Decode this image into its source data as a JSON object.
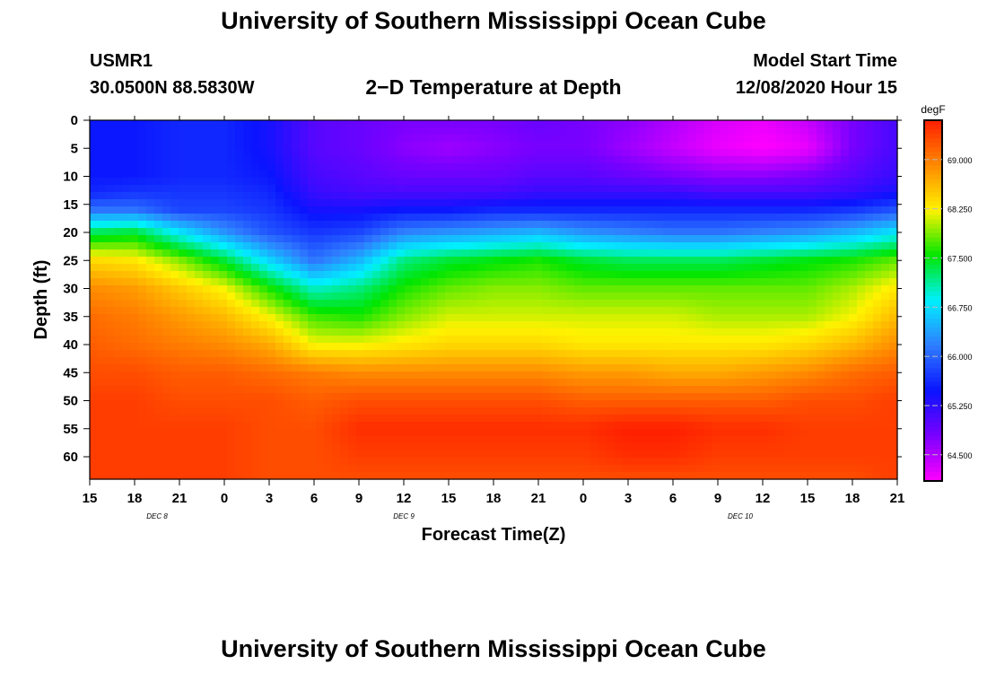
{
  "page": {
    "title_top": "University of Southern Mississippi Ocean Cube",
    "title_bottom": "University of Southern Mississippi Ocean Cube",
    "station_id": "USMR1",
    "station_coords": "30.0500N 88.5830W",
    "plot_title": "2−D Temperature at Depth",
    "model_label": "Model Start Time",
    "model_time": "12/08/2020 Hour 15"
  },
  "colors": {
    "magenta": "#ff00ff",
    "purple": "#7a00ff",
    "blue": "#0a14ff",
    "sky": "#2f7dff",
    "cyan": "#00f0ff",
    "green": "#00e600",
    "yellow": "#fff300",
    "orange": "#ff8a00",
    "red": "#ff1e00"
  },
  "chart_data": {
    "type": "heatmap",
    "title": "2−D Temperature at Depth",
    "xlabel": "Forecast Time(Z)",
    "ylabel": "Depth (ft)",
    "x_tick_labels": [
      "15",
      "18",
      "21",
      "0",
      "3",
      "6",
      "9",
      "12",
      "15",
      "18",
      "21",
      "0",
      "3",
      "6",
      "9",
      "12",
      "15",
      "18",
      "21"
    ],
    "date_labels": [
      {
        "text": "DEC 8",
        "tick_index": 1.5
      },
      {
        "text": "DEC 9",
        "tick_index": 7
      },
      {
        "text": "DEC 10",
        "tick_index": 14.5
      }
    ],
    "y_ticks": [
      0,
      5,
      10,
      15,
      20,
      25,
      30,
      35,
      40,
      45,
      50,
      55,
      60
    ],
    "ylim": [
      0,
      64
    ],
    "xlim_ticks": [
      0,
      18
    ],
    "colorbar": {
      "unit": "degF",
      "min": 64.1,
      "max": 69.6,
      "labels": [
        "69.000",
        "68.250",
        "67.500",
        "66.750",
        "66.000",
        "65.250",
        "64.500"
      ],
      "label_values": [
        69.0,
        68.25,
        67.5,
        66.75,
        66.0,
        65.25,
        64.5
      ]
    },
    "temperature_field": {
      "note": "approximate degF read off the color scale; columns at forecast ticks 0..18, rows at depths listed",
      "depths": [
        0,
        5,
        10,
        13,
        16,
        20,
        25,
        30,
        35,
        40,
        45,
        50,
        55,
        60,
        64
      ],
      "tick_columns": [
        0,
        1,
        2,
        3,
        4,
        5,
        6,
        7,
        8,
        9,
        10,
        11,
        12,
        13,
        14,
        15,
        16,
        17,
        18
      ],
      "values": [
        [
          65.5,
          65.5,
          65.6,
          65.6,
          65.4,
          65.0,
          64.9,
          64.8,
          64.8,
          64.8,
          64.9,
          64.8,
          64.7,
          64.5,
          64.3,
          64.2,
          64.4,
          64.8,
          65.1
        ],
        [
          65.5,
          65.5,
          65.6,
          65.6,
          65.4,
          65.0,
          64.9,
          64.7,
          64.6,
          64.7,
          64.8,
          64.8,
          64.6,
          64.4,
          64.2,
          64.1,
          64.2,
          64.8,
          65.1
        ],
        [
          65.5,
          65.5,
          65.6,
          65.6,
          65.5,
          65.1,
          65.0,
          64.9,
          64.9,
          64.9,
          65.0,
          65.0,
          64.9,
          64.8,
          64.7,
          64.7,
          64.8,
          65.0,
          65.2
        ],
        [
          65.6,
          65.7,
          65.7,
          65.7,
          65.6,
          65.2,
          65.1,
          65.1,
          65.1,
          65.1,
          65.2,
          65.2,
          65.2,
          65.2,
          65.1,
          65.1,
          65.1,
          65.2,
          65.4
        ],
        [
          66.1,
          66.1,
          65.8,
          65.8,
          65.7,
          65.4,
          65.4,
          65.5,
          65.5,
          65.6,
          65.6,
          65.6,
          65.6,
          65.6,
          65.6,
          65.6,
          65.6,
          65.7,
          65.9
        ],
        [
          67.3,
          67.4,
          66.8,
          66.3,
          65.9,
          65.7,
          65.8,
          66.2,
          66.3,
          66.4,
          66.5,
          66.3,
          66.2,
          66.1,
          66.1,
          66.2,
          66.3,
          66.5,
          66.8
        ],
        [
          68.4,
          68.3,
          67.9,
          67.4,
          66.7,
          66.1,
          66.5,
          67.2,
          67.4,
          67.5,
          67.6,
          67.4,
          67.3,
          67.3,
          67.3,
          67.4,
          67.5,
          67.6,
          67.8
        ],
        [
          68.9,
          68.8,
          68.5,
          68.2,
          67.6,
          67.0,
          67.2,
          67.6,
          67.8,
          67.9,
          67.9,
          67.8,
          67.8,
          67.8,
          67.8,
          67.8,
          67.8,
          68.0,
          68.3
        ],
        [
          69.1,
          69.0,
          68.8,
          68.6,
          68.2,
          67.7,
          67.6,
          67.9,
          68.1,
          68.1,
          68.1,
          68.1,
          68.1,
          68.1,
          68.0,
          68.0,
          68.0,
          68.2,
          68.6
        ],
        [
          69.2,
          69.1,
          69.0,
          68.9,
          68.7,
          68.2,
          68.2,
          68.3,
          68.4,
          68.4,
          68.4,
          68.3,
          68.3,
          68.3,
          68.3,
          68.3,
          68.4,
          68.6,
          68.9
        ],
        [
          69.3,
          69.3,
          69.2,
          69.2,
          69.1,
          69.0,
          68.9,
          68.9,
          68.9,
          68.9,
          68.9,
          68.8,
          68.8,
          68.7,
          68.7,
          68.8,
          68.9,
          69.1,
          69.2
        ],
        [
          69.4,
          69.4,
          69.3,
          69.3,
          69.3,
          69.2,
          69.3,
          69.3,
          69.3,
          69.3,
          69.3,
          69.2,
          69.2,
          69.2,
          69.2,
          69.2,
          69.3,
          69.3,
          69.4
        ],
        [
          69.4,
          69.4,
          69.4,
          69.4,
          69.3,
          69.3,
          69.5,
          69.5,
          69.5,
          69.5,
          69.5,
          69.5,
          69.6,
          69.6,
          69.5,
          69.5,
          69.4,
          69.4,
          69.4
        ],
        [
          69.4,
          69.4,
          69.4,
          69.4,
          69.3,
          69.3,
          69.4,
          69.4,
          69.4,
          69.4,
          69.4,
          69.4,
          69.5,
          69.5,
          69.4,
          69.4,
          69.4,
          69.4,
          69.4
        ],
        [
          69.4,
          69.4,
          69.4,
          69.4,
          69.3,
          69.3,
          69.3,
          69.3,
          69.3,
          69.3,
          69.3,
          69.3,
          69.3,
          69.3,
          69.3,
          69.3,
          69.3,
          69.3,
          69.4
        ]
      ]
    }
  }
}
